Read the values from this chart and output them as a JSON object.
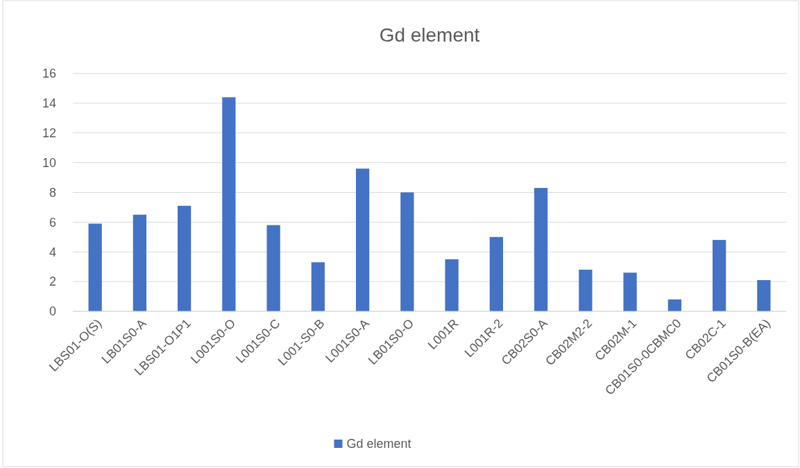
{
  "chart_data": {
    "type": "bar",
    "title": "Gd element",
    "categories": [
      "LBS01-O(S)",
      "LB01S0-A",
      "LBS01-O1P1",
      "L001S0-O",
      "L001S0-C",
      "L001-S0-B",
      "L001S0-A",
      "LB01S0-O",
      "L001R",
      "L001R-2",
      "CB02S0-A",
      "CB02M2-2",
      "CB02M-1",
      "CB01S0-0CBMC0",
      "CB02C-1",
      "CB01S0-B(EA)"
    ],
    "series": [
      {
        "name": "Gd element",
        "color": "#4472c4",
        "values": [
          5.9,
          6.5,
          7.1,
          14.4,
          5.8,
          3.3,
          9.6,
          8.0,
          3.5,
          5.0,
          8.3,
          2.8,
          2.6,
          0.8,
          4.8,
          2.1
        ]
      }
    ],
    "ylim": [
      0,
      16
    ],
    "yticks": [
      0,
      2,
      4,
      6,
      8,
      10,
      12,
      14,
      16
    ],
    "grid": "y",
    "legend": "bottom"
  }
}
